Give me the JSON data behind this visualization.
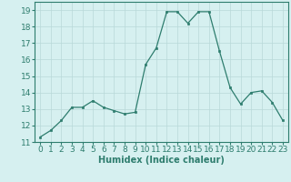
{
  "x": [
    0,
    1,
    2,
    3,
    4,
    5,
    6,
    7,
    8,
    9,
    10,
    11,
    12,
    13,
    14,
    15,
    16,
    17,
    18,
    19,
    20,
    21,
    22,
    23
  ],
  "y": [
    11.3,
    11.7,
    12.3,
    13.1,
    13.1,
    13.5,
    13.1,
    12.9,
    12.7,
    12.8,
    15.7,
    16.7,
    18.9,
    18.9,
    18.2,
    18.9,
    18.9,
    16.5,
    14.3,
    13.3,
    14.0,
    14.1,
    13.4,
    12.3
  ],
  "line_color": "#2e7d6e",
  "marker": "s",
  "marker_size": 2,
  "bg_color": "#d6f0f0",
  "grid_color": "#b8d8d8",
  "xlabel": "Humidex (Indice chaleur)",
  "ylim": [
    11,
    19.5
  ],
  "xlim": [
    -0.5,
    23.5
  ],
  "yticks": [
    11,
    12,
    13,
    14,
    15,
    16,
    17,
    18,
    19
  ],
  "xticks": [
    0,
    1,
    2,
    3,
    4,
    5,
    6,
    7,
    8,
    9,
    10,
    11,
    12,
    13,
    14,
    15,
    16,
    17,
    18,
    19,
    20,
    21,
    22,
    23
  ],
  "xlabel_fontsize": 7,
  "tick_fontsize": 6.5
}
